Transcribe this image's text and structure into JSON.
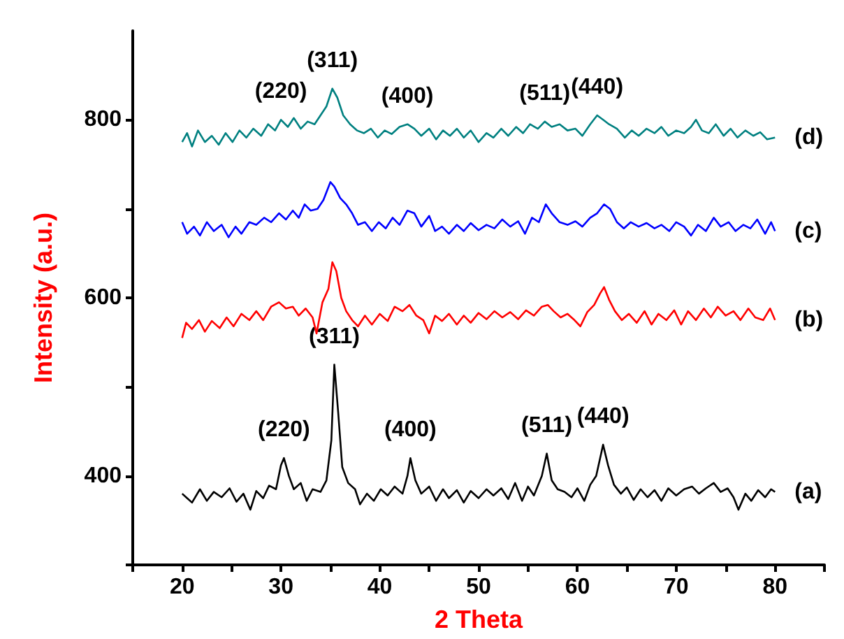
{
  "chart_data": {
    "type": "line",
    "xlabel": "2 Theta",
    "ylabel": "Intensity (a.u.)",
    "xlim": [
      15,
      85
    ],
    "ylim": [
      300,
      900
    ],
    "xticks": [
      {
        "value": 15,
        "label": null
      },
      20,
      {
        "value": 25,
        "label": null
      },
      30,
      {
        "value": 35,
        "label": null
      },
      40,
      {
        "value": 45,
        "label": null
      },
      50,
      {
        "value": 55,
        "label": null
      },
      60,
      {
        "value": 65,
        "label": null
      },
      70,
      {
        "value": 75,
        "label": null
      },
      80,
      {
        "value": 85,
        "label": null
      }
    ],
    "yticks": [
      {
        "value": 300,
        "label": null
      },
      400,
      {
        "value": 500,
        "label": null
      },
      600,
      {
        "value": 700,
        "label": null
      },
      800
    ],
    "grid": false,
    "legend": false,
    "marker": "none",
    "line_style": "solid",
    "series": [
      {
        "name": "(a)",
        "color": "#000000",
        "x": [
          20,
          20.5,
          21,
          21.8,
          22.5,
          23.2,
          24,
          24.8,
          25.5,
          26.2,
          26.9,
          27.5,
          28.2,
          28.8,
          29.5,
          30,
          30.3,
          30.8,
          31.3,
          32,
          32.6,
          33.2,
          34,
          34.6,
          35.1,
          35.4,
          35.8,
          36.2,
          36.8,
          37.5,
          38,
          38.7,
          39.4,
          40.1,
          40.8,
          41.5,
          42.3,
          42.8,
          43.1,
          43.6,
          44.2,
          45,
          45.7,
          46.4,
          47,
          47.8,
          48.5,
          49.2,
          50,
          50.8,
          51.5,
          52.3,
          53,
          53.7,
          54.4,
          55,
          55.6,
          56.4,
          56.9,
          57.4,
          58,
          58.7,
          59.4,
          60,
          60.7,
          61.3,
          61.9,
          62.6,
          63.1,
          63.7,
          64.4,
          65,
          65.7,
          66.4,
          67.1,
          67.8,
          68.5,
          69.2,
          70,
          70.8,
          71.6,
          72.3,
          73,
          73.8,
          74.5,
          75.2,
          75.8,
          76.3,
          77,
          77.6,
          78.3,
          79,
          79.6,
          80
        ],
        "values": [
          380,
          375,
          370,
          385,
          372,
          382,
          376,
          386,
          371,
          380,
          362,
          383,
          375,
          389,
          385,
          412,
          420,
          400,
          385,
          392,
          372,
          385,
          382,
          395,
          440,
          525,
          470,
          410,
          392,
          385,
          368,
          380,
          372,
          385,
          378,
          388,
          380,
          400,
          420,
          395,
          380,
          388,
          372,
          385,
          375,
          384,
          370,
          383,
          375,
          385,
          378,
          386,
          374,
          392,
          372,
          388,
          378,
          400,
          425,
          395,
          385,
          382,
          376,
          386,
          372,
          390,
          400,
          435,
          412,
          390,
          380,
          387,
          373,
          385,
          376,
          384,
          372,
          386,
          378,
          385,
          388,
          380,
          386,
          392,
          382,
          386,
          376,
          362,
          380,
          372,
          384,
          376,
          385,
          382
        ]
      },
      {
        "name": "(b)",
        "color": "#ff0000",
        "x": [
          20,
          20.4,
          21,
          21.7,
          22.3,
          23,
          23.8,
          24.5,
          25.2,
          26,
          26.8,
          27.5,
          28.2,
          29,
          29.8,
          30.5,
          31.2,
          31.8,
          32.5,
          33.2,
          33.6,
          34.2,
          34.8,
          35.2,
          35.6,
          36.1,
          36.6,
          37.2,
          37.8,
          38.5,
          39.2,
          40,
          40.8,
          41.5,
          42.3,
          43,
          43.7,
          44.4,
          45,
          45.6,
          46.3,
          47,
          47.8,
          48.5,
          49.2,
          50,
          50.8,
          51.6,
          52.4,
          53.2,
          54,
          54.8,
          55.6,
          56.4,
          57,
          57.6,
          58.3,
          59,
          59.7,
          60.3,
          61,
          61.7,
          62.3,
          62.7,
          63.2,
          63.8,
          64.5,
          65.2,
          66,
          66.8,
          67.5,
          68.2,
          69,
          69.8,
          70.5,
          71.2,
          72,
          72.8,
          73.5,
          74.2,
          75,
          75.8,
          76.5,
          77.3,
          78,
          78.8,
          79.5,
          80
        ],
        "values": [
          555,
          572,
          565,
          575,
          562,
          574,
          566,
          578,
          568,
          582,
          575,
          585,
          575,
          590,
          595,
          588,
          590,
          580,
          588,
          578,
          560,
          595,
          610,
          640,
          630,
          600,
          585,
          575,
          568,
          580,
          570,
          582,
          574,
          590,
          585,
          592,
          580,
          575,
          560,
          580,
          574,
          582,
          570,
          580,
          572,
          583,
          576,
          585,
          578,
          584,
          576,
          586,
          580,
          590,
          592,
          585,
          578,
          582,
          575,
          568,
          584,
          592,
          605,
          612,
          598,
          585,
          575,
          582,
          572,
          585,
          570,
          582,
          575,
          586,
          570,
          585,
          575,
          588,
          578,
          590,
          580,
          585,
          575,
          588,
          578,
          575,
          588,
          575
        ]
      },
      {
        "name": "(c)",
        "color": "#0000ff",
        "x": [
          20,
          20.5,
          21.2,
          21.8,
          22.5,
          23.2,
          24,
          24.7,
          25.4,
          26,
          26.8,
          27.5,
          28.3,
          29,
          29.8,
          30.5,
          31.2,
          31.8,
          32.4,
          33,
          33.7,
          34.3,
          35,
          35.4,
          36,
          36.6,
          37.2,
          37.8,
          38.5,
          39.2,
          39.9,
          40.6,
          41.3,
          42,
          42.8,
          43.5,
          44.2,
          45,
          45.6,
          46.3,
          47,
          47.8,
          48.5,
          49.2,
          50,
          50.8,
          51.6,
          52.4,
          53.2,
          54,
          54.7,
          55.4,
          56.1,
          56.8,
          57.4,
          58.2,
          59,
          59.8,
          60.5,
          61.3,
          62,
          62.7,
          63.3,
          64,
          64.7,
          65.4,
          66.2,
          67,
          67.8,
          68.5,
          69.3,
          70,
          70.8,
          71.5,
          72.2,
          73,
          73.8,
          74.5,
          75.3,
          76,
          76.8,
          77.5,
          78.2,
          79,
          79.6,
          80
        ],
        "values": [
          685,
          672,
          680,
          670,
          685,
          675,
          682,
          668,
          680,
          672,
          685,
          682,
          690,
          685,
          695,
          688,
          698,
          690,
          705,
          698,
          700,
          710,
          730,
          725,
          712,
          705,
          695,
          682,
          685,
          675,
          685,
          678,
          690,
          682,
          698,
          695,
          680,
          692,
          675,
          680,
          672,
          682,
          675,
          684,
          676,
          682,
          678,
          688,
          680,
          686,
          672,
          690,
          685,
          705,
          695,
          685,
          682,
          686,
          680,
          690,
          695,
          705,
          700,
          685,
          678,
          685,
          680,
          684,
          678,
          682,
          675,
          685,
          680,
          670,
          682,
          675,
          690,
          680,
          685,
          675,
          682,
          678,
          688,
          672,
          685,
          675
        ]
      },
      {
        "name": "(d)",
        "color": "#008080",
        "x": [
          20,
          20.5,
          21,
          21.6,
          22.3,
          23,
          23.7,
          24.4,
          25.1,
          25.8,
          26.5,
          27.2,
          28,
          28.7,
          29.4,
          30,
          30.7,
          31.3,
          32,
          32.7,
          33.4,
          34,
          34.6,
          35.2,
          35.7,
          36.3,
          37,
          37.7,
          38.4,
          39.1,
          39.8,
          40.5,
          41.2,
          42,
          42.8,
          43.5,
          44.2,
          45,
          45.7,
          46.4,
          47.1,
          47.8,
          48.5,
          49.2,
          50,
          50.8,
          51.5,
          52.3,
          53,
          53.8,
          54.5,
          55.2,
          56,
          56.7,
          57.4,
          58.2,
          59,
          59.8,
          60.5,
          61.3,
          62,
          62.6,
          63.2,
          64,
          64.8,
          65.5,
          66.2,
          67,
          67.8,
          68.5,
          69.2,
          70,
          70.8,
          71.5,
          72,
          72.6,
          73.3,
          74,
          74.8,
          75.5,
          76.2,
          77,
          77.8,
          78.5,
          79.2,
          80
        ],
        "values": [
          775,
          785,
          770,
          788,
          775,
          782,
          772,
          785,
          775,
          788,
          780,
          790,
          782,
          795,
          788,
          800,
          792,
          802,
          790,
          798,
          795,
          805,
          815,
          835,
          825,
          805,
          795,
          788,
          785,
          790,
          780,
          788,
          784,
          792,
          795,
          790,
          782,
          790,
          778,
          788,
          782,
          790,
          780,
          788,
          775,
          785,
          780,
          790,
          782,
          792,
          785,
          795,
          790,
          798,
          792,
          795,
          788,
          790,
          782,
          795,
          805,
          800,
          795,
          790,
          780,
          788,
          782,
          790,
          785,
          792,
          782,
          788,
          785,
          792,
          800,
          788,
          785,
          795,
          782,
          790,
          780,
          788,
          782,
          786,
          778,
          780
        ]
      }
    ],
    "annotations": [
      {
        "text": "(220)",
        "x": 30.3,
        "y": 420
      },
      {
        "text": "(311)",
        "x": 35.4,
        "y": 525
      },
      {
        "text": "(400)",
        "x": 43.1,
        "y": 420
      },
      {
        "text": "(511)",
        "x": 56.9,
        "y": 425
      },
      {
        "text": "(440)",
        "x": 62.6,
        "y": 435
      },
      {
        "text": "(220)",
        "x": 30,
        "y": 800
      },
      {
        "text": "(311)",
        "x": 35.2,
        "y": 835
      },
      {
        "text": "(400)",
        "x": 42.8,
        "y": 795
      },
      {
        "text": "(511)",
        "x": 56.7,
        "y": 798
      },
      {
        "text": "(440)",
        "x": 62,
        "y": 805
      }
    ]
  }
}
